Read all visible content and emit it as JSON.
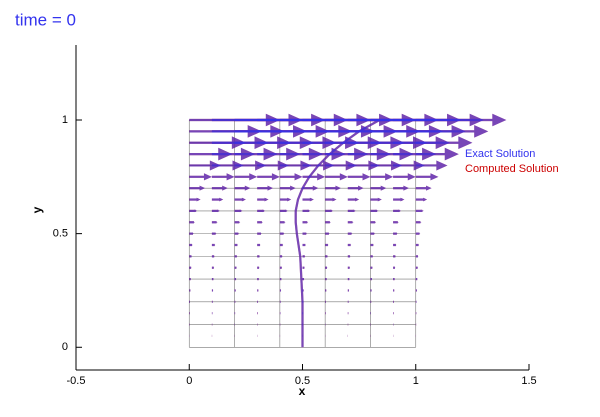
{
  "chart_data": {
    "type": "quiver",
    "title": "time = 0",
    "xlabel": "x",
    "ylabel": "y",
    "xlim": [
      -0.5,
      1.5
    ],
    "ylim": [
      -0.1,
      1.33
    ],
    "xticks": [
      -0.5,
      0,
      0.5,
      1,
      1.5
    ],
    "yticks": [
      0,
      0.5,
      1
    ],
    "mesh_x": [
      0,
      0.2,
      0.4,
      0.6,
      0.8,
      1
    ],
    "mesh_y": [
      0,
      0.1,
      0.2,
      0.3,
      0.4,
      0.5,
      0.6,
      0.7,
      0.8,
      0.9,
      1
    ],
    "columns": [
      0,
      0.1,
      0.2,
      0.3,
      0.4,
      0.5,
      0.6,
      0.7,
      0.8,
      0.9,
      1
    ],
    "rows": [
      0,
      0.05,
      0.1,
      0.15,
      0.2,
      0.25,
      0.3,
      0.35,
      0.4,
      0.45,
      0.5,
      0.55,
      0.6,
      0.65,
      0.7,
      0.75,
      0.8,
      0.85,
      0.9,
      0.95,
      1
    ],
    "series": [
      {
        "name": "Computed Solution",
        "color": "#cc0000",
        "u": [
          0,
          0.001,
          0.002,
          0.003,
          0.004,
          0.006,
          0.008,
          0.01,
          0.012,
          0.015,
          0.02,
          0.025,
          0.035,
          0.05,
          0.07,
          0.1,
          0.14,
          0.19,
          0.25,
          0.32,
          0.4
        ],
        "curve_y": [
          0,
          0.1,
          0.2,
          0.3,
          0.4,
          0.5,
          0.55,
          0.6,
          0.65,
          0.7,
          0.75,
          0.8,
          0.85,
          0.9,
          0.95,
          1
        ],
        "curve_x": [
          0.5,
          0.5,
          0.5,
          0.495,
          0.49,
          0.475,
          0.47,
          0.47,
          0.48,
          0.5,
          0.53,
          0.57,
          0.62,
          0.68,
          0.75,
          0.84
        ]
      },
      {
        "name": "Exact Solution",
        "color": "#3333ee",
        "u": [
          0,
          0.001,
          0.002,
          0.003,
          0.004,
          0.006,
          0.008,
          0.01,
          0.012,
          0.015,
          0.02,
          0.025,
          0.035,
          0.05,
          0.07,
          0.1,
          0.14,
          0.19,
          0.25,
          0.32,
          0.4
        ],
        "curve_y": [
          0,
          0.1,
          0.2,
          0.3,
          0.4,
          0.5,
          0.55,
          0.6,
          0.65,
          0.7,
          0.75,
          0.8,
          0.85,
          0.9,
          0.95,
          1
        ],
        "curve_x": [
          0.5,
          0.5,
          0.5,
          0.495,
          0.49,
          0.475,
          0.47,
          0.47,
          0.48,
          0.5,
          0.53,
          0.57,
          0.62,
          0.68,
          0.75,
          0.84
        ]
      }
    ]
  }
}
